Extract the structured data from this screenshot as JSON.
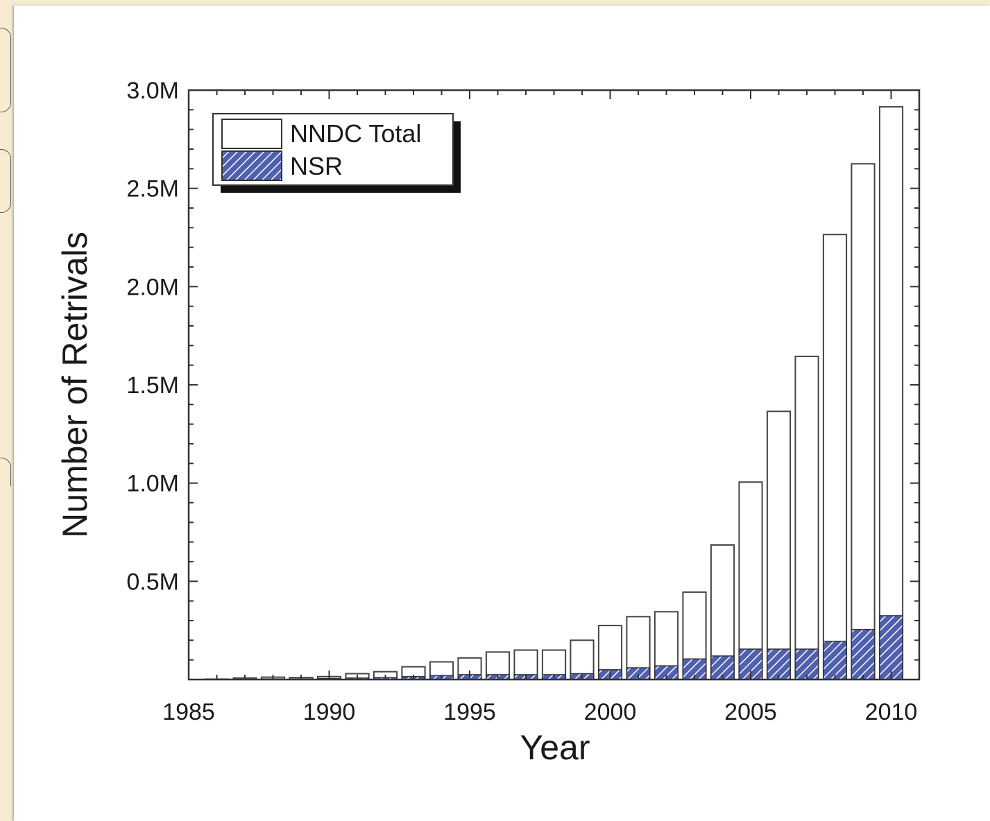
{
  "chart_data": {
    "type": "bar",
    "xlabel": "Year",
    "ylabel": "Number of Retrivals",
    "xlim": [
      1985,
      2011
    ],
    "ylim": [
      0,
      3000000
    ],
    "x_ticks": [
      1985,
      1990,
      1995,
      2000,
      2005,
      2010
    ],
    "x_tick_labels": [
      "1985",
      "1990",
      "1995",
      "2000",
      "2005",
      "2010"
    ],
    "y_ticks": [
      500000,
      1000000,
      1500000,
      2000000,
      2500000,
      3000000
    ],
    "y_tick_labels": [
      "0.5M",
      "1.0M",
      "1.5M",
      "2.0M",
      "2.5M",
      "3.0M"
    ],
    "legend_position": "top-left",
    "grid": false,
    "x": [
      1986,
      1987,
      1988,
      1989,
      1990,
      1991,
      1992,
      1993,
      1994,
      1995,
      1996,
      1997,
      1998,
      1999,
      2000,
      2001,
      2002,
      2003,
      2004,
      2005,
      2006,
      2007,
      2008,
      2009,
      2010
    ],
    "series": [
      {
        "name": "NNDC Total",
        "color": "#ffffff",
        "values": [
          2000,
          8000,
          12000,
          10000,
          15000,
          30000,
          40000,
          65000,
          90000,
          110000,
          140000,
          150000,
          150000,
          200000,
          275000,
          320000,
          345000,
          445000,
          685000,
          1005000,
          1365000,
          1645000,
          2265000,
          2625000,
          2915000
        ]
      },
      {
        "name": "NSR",
        "color": "#5060b0",
        "values": [
          0,
          2000,
          3000,
          3000,
          5000,
          8000,
          10000,
          15000,
          20000,
          25000,
          25000,
          25000,
          25000,
          30000,
          50000,
          60000,
          70000,
          105000,
          120000,
          155000,
          155000,
          155000,
          195000,
          255000,
          325000
        ]
      }
    ]
  }
}
